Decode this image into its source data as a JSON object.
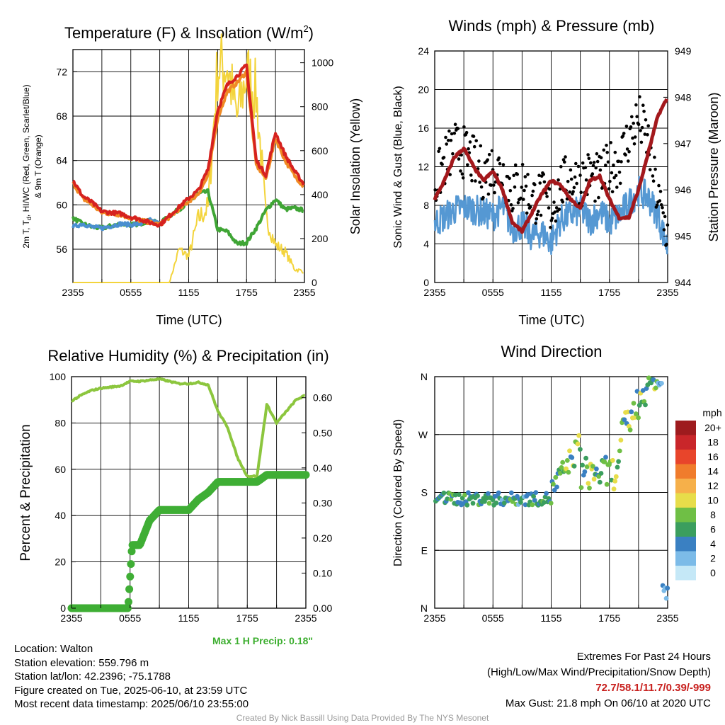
{
  "panel1": {
    "title": "Temperature (F) & Insolation (W/m",
    "title_sup": "2",
    "title_end": ")",
    "ylabel_left_line1": "2m T, T",
    "ylabel_left_sub": "d",
    "ylabel_left_line1b": ", HI/WC (Red, Green, Scarlet/Blue)",
    "ylabel_left_line2": "& 9m T (Orange)",
    "ylabel_right": "Solar Insolation (Yellow)",
    "xlabel": "Time (UTC)"
  },
  "panel2": {
    "title": "Winds (mph) & Pressure (mb)",
    "ylabel_left": "Sonic Wind & Gust (Blue, Black)",
    "ylabel_right": "Station Pressure (Maroon)",
    "xlabel": "Time (UTC)"
  },
  "panel3": {
    "title": "Relative Humidity (%) & Precipitation (in)",
    "ylabel_left": "Percent & Precipitation",
    "max_precip": "Max 1 H Precip: 0.18\""
  },
  "panel4": {
    "title": "Wind Direction",
    "ylabel_left": "Direction (Colored By Speed)",
    "legend_title": "mph",
    "legend_labels": [
      "20+",
      "18",
      "16",
      "14",
      "12",
      "10",
      "8",
      "6",
      "4",
      "2",
      "0"
    ]
  },
  "info": {
    "location": "Location: Walton",
    "elevation": "Station elevation: 559.796 m",
    "latlon": "Station lat/lon: 42.2396; -75.1788",
    "created": "Figure created on Tue, 2025-06-10, at 23:59 UTC",
    "recent": "Most recent data timestamp: 2025/06/10 23:55:00"
  },
  "extremes": {
    "line1": "Extremes For Past 24 Hours",
    "line2": "(High/Low/Max Wind/Precipitation/Snow Depth)",
    "values": "72.7/58.1/11.7/0.39/-999",
    "gust": "Max Gust: 21.8 mph On 06/10 at 2020 UTC"
  },
  "credit": "Created By Nick Bassill Using Data Provided By The NYS Mesonet",
  "chart_data": [
    {
      "type": "line",
      "name_key": "temperature",
      "x_ticks": [
        "2355",
        "0555",
        "1155",
        "1755",
        "2355"
      ],
      "ylim_left": [
        53,
        74
      ],
      "yticks_left": [
        56,
        60,
        64,
        68,
        72
      ],
      "ylim_right": [
        0,
        1060
      ],
      "yticks_right": [
        0,
        200,
        400,
        600,
        800,
        1000
      ],
      "x_hours": [
        0,
        1,
        2,
        3,
        4,
        5,
        6,
        7,
        8,
        9,
        10,
        11,
        12,
        13,
        14,
        15,
        16,
        17,
        18,
        19,
        20,
        21,
        22,
        23,
        24
      ],
      "series": [
        {
          "color": "#d6221f",
          "values": [
            62.2,
            60.8,
            60.2,
            59.4,
            59.3,
            59.2,
            58.9,
            58.7,
            58.4,
            58.2,
            59.0,
            59.8,
            60.6,
            61.3,
            63.2,
            68.5,
            70.8,
            71.6,
            72.6,
            64.0,
            62.7,
            66.5,
            64.5,
            63.0,
            61.8
          ]
        },
        {
          "color": "#f08a24",
          "values": [
            62.0,
            60.6,
            60.0,
            59.3,
            59.2,
            59.1,
            58.8,
            58.6,
            58.4,
            58.2,
            58.9,
            59.6,
            60.3,
            61.0,
            62.6,
            67.8,
            70.2,
            71.0,
            72.0,
            63.6,
            62.4,
            66.0,
            64.0,
            62.6,
            61.6
          ]
        },
        {
          "color": "#3fa535",
          "values": [
            58.8,
            58.3,
            58.0,
            57.9,
            58.1,
            58.3,
            58.2,
            58.3,
            58.6,
            58.3,
            59.0,
            59.6,
            60.2,
            61.0,
            61.2,
            57.8,
            57.6,
            56.5,
            56.6,
            57.9,
            59.5,
            60.5,
            59.6,
            59.7,
            59.5
          ]
        },
        {
          "color": "#4a8fd0",
          "values": [
            58.0,
            58.3,
            58.0,
            57.9,
            58.1,
            58.3,
            58.2,
            58.3,
            58.6,
            58.3
          ]
        },
        {
          "color": "#f3d43c",
          "axis": "right",
          "values": [
            0,
            0,
            0,
            0,
            0,
            0,
            0,
            0,
            0,
            0,
            0,
            150,
            120,
            290,
            340,
            980,
            990,
            750,
            950,
            860,
            300,
            170,
            140,
            60,
            50
          ]
        }
      ]
    },
    {
      "type": "line",
      "name_key": "winds",
      "x_ticks": [
        "2355",
        "0555",
        "1155",
        "1755",
        "2355"
      ],
      "ylim_left": [
        0,
        24
      ],
      "yticks_left": [
        0,
        4,
        8,
        12,
        16,
        20,
        24
      ],
      "ylim_right": [
        944,
        949
      ],
      "yticks_right": [
        944,
        945,
        946,
        947,
        948,
        949
      ],
      "x_hours": [
        0,
        1,
        2,
        3,
        4,
        5,
        6,
        7,
        8,
        9,
        10,
        11,
        12,
        13,
        14,
        15,
        16,
        17,
        18,
        19,
        20,
        21,
        22,
        23,
        24
      ],
      "wind": [
        6.2,
        6.8,
        7.5,
        7.8,
        7.6,
        7.2,
        6.9,
        7.8,
        5.6,
        6.0,
        4.8,
        5.2,
        4.2,
        6.5,
        7.0,
        7.5,
        6.4,
        7.4,
        6.2,
        7.0,
        8.2,
        9.5,
        8.8,
        7.0,
        3.5
      ],
      "gust": [
        10.0,
        12.5,
        14.0,
        13.5,
        12.5,
        11.2,
        12.0,
        11.5,
        9.5,
        10.5,
        8.5,
        9.0,
        7.5,
        10.0,
        10.8,
        10.5,
        11.2,
        10.5,
        12.0,
        12.5,
        15.0,
        17.0,
        14.5,
        8.5,
        5.0
      ],
      "pressure": [
        945.8,
        946.2,
        946.7,
        946.9,
        946.5,
        946.2,
        946.4,
        946.0,
        945.3,
        945.1,
        945.5,
        945.9,
        946.2,
        946.1,
        945.8,
        945.6,
        946.2,
        946.3,
        945.8,
        945.4,
        945.4,
        946.0,
        946.8,
        947.6,
        948.0
      ]
    },
    {
      "type": "line",
      "name_key": "humidity",
      "x_ticks": [
        "2355",
        "0555",
        "1155",
        "1755",
        "2355"
      ],
      "ylim_left": [
        0,
        100
      ],
      "yticks_left": [
        0,
        20,
        40,
        60,
        80,
        100
      ],
      "ylim_right": [
        0,
        0.66
      ],
      "yticks_right": [
        "0.00",
        "0.10",
        "0.20",
        "0.30",
        "0.40",
        "0.50",
        "0.60"
      ],
      "x_hours": [
        0,
        1,
        2,
        3,
        4,
        5,
        6,
        7,
        8,
        9,
        10,
        11,
        12,
        13,
        14,
        15,
        16,
        17,
        18,
        19,
        20,
        21,
        22,
        23,
        24
      ],
      "rh": [
        89.5,
        92,
        94,
        95,
        95.5,
        96,
        98,
        98,
        98.5,
        99,
        98,
        97,
        97,
        97.5,
        96.5,
        85,
        78,
        65,
        57,
        57,
        88,
        80,
        85,
        90,
        92
      ],
      "precip": [
        0,
        0,
        0,
        0,
        0,
        0,
        0.18,
        0.18,
        0.25,
        0.28,
        0.28,
        0.28,
        0.28,
        0.31,
        0.33,
        0.36,
        0.36,
        0.36,
        0.36,
        0.36,
        0.38,
        0.38,
        0.38,
        0.38,
        0.38
      ]
    },
    {
      "type": "scatter",
      "name_key": "direction",
      "x_ticks": [
        "2355",
        "0555",
        "1155",
        "1755",
        "2355"
      ],
      "y_ticks": [
        "N",
        "E",
        "S",
        "W",
        "N"
      ],
      "ylim": [
        0,
        360
      ]
    }
  ]
}
